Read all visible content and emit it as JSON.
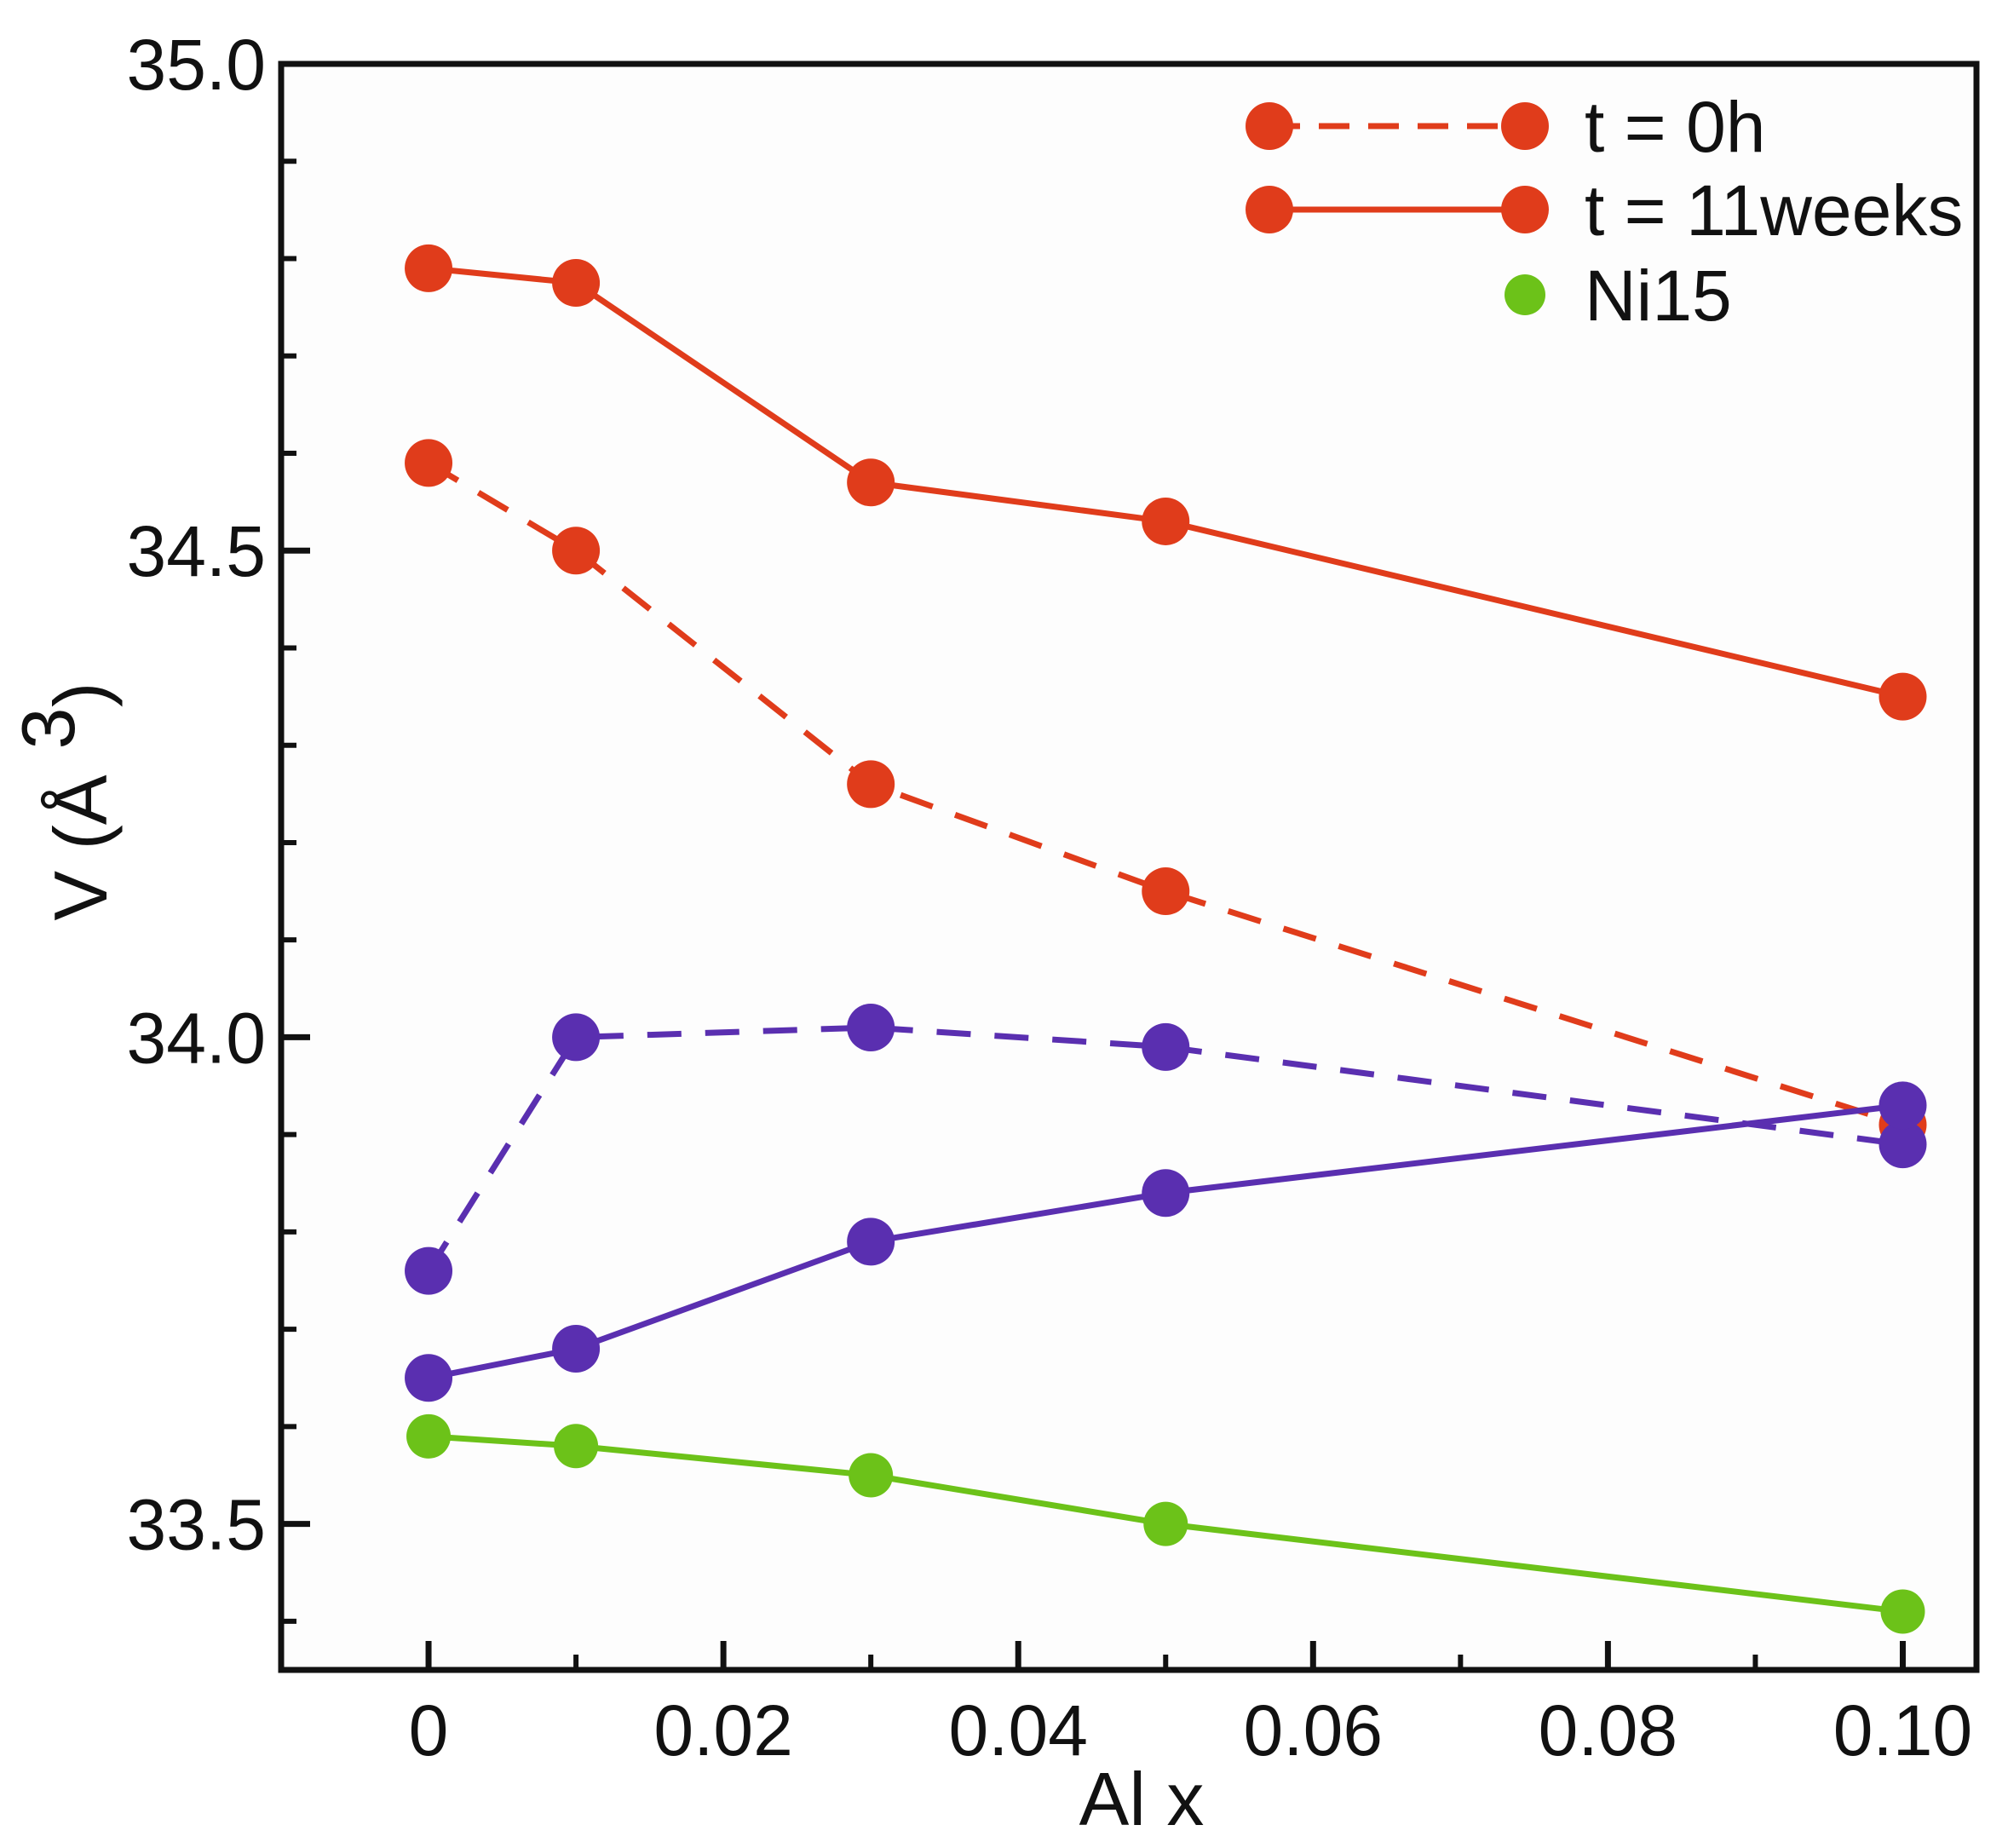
{
  "chart_data": {
    "type": "line",
    "title": "",
    "xlabel": "Al x",
    "ylabel": "V (Å",
    "ylabel_superscript": "3",
    "ylabel_close": ")",
    "xlim": [
      -0.01,
      0.105
    ],
    "ylim": [
      33.35,
      35.0
    ],
    "x_ticks": [
      0,
      0.02,
      0.04,
      0.06,
      0.08,
      0.1
    ],
    "x_tick_labels": [
      "0",
      "0.02",
      "0.04",
      "0.06",
      "0.08",
      "0.10"
    ],
    "x_minor_ticks": [
      0.01,
      0.03,
      0.05,
      0.07,
      0.09
    ],
    "y_ticks": [
      33.5,
      34.0,
      34.5,
      35.0
    ],
    "y_tick_labels": [
      "33.5",
      "34.0",
      "34.5",
      "35.0"
    ],
    "y_minor_ticks": [
      33.4,
      33.6,
      33.7,
      33.8,
      33.9,
      34.1,
      34.2,
      34.3,
      34.4,
      34.6,
      34.7,
      34.8,
      34.9
    ],
    "grid": false,
    "legend_position": "top-right",
    "legend": [
      {
        "label": "t = 0h",
        "style": "dashed",
        "color": "#e03c1b"
      },
      {
        "label": "t = 11weeks",
        "style": "solid",
        "color": "#e03c1b"
      },
      {
        "label": "Ni15",
        "style": "marker",
        "color": "#6cc219"
      }
    ],
    "series": [
      {
        "name": "red t = 11weeks",
        "color": "#e03c1b",
        "style": "solid",
        "x": [
          0,
          0.01,
          0.03,
          0.05,
          0.1
        ],
        "values": [
          34.79,
          34.775,
          34.57,
          34.53,
          34.35
        ]
      },
      {
        "name": "red t = 0h",
        "color": "#e03c1b",
        "style": "dashed",
        "x": [
          0,
          0.01,
          0.03,
          0.05,
          0.1
        ],
        "values": [
          34.59,
          34.5,
          34.26,
          34.15,
          33.91
        ]
      },
      {
        "name": "purple t = 0h",
        "color": "#5a2fb0",
        "style": "dashed",
        "x": [
          0,
          0.01,
          0.03,
          0.05,
          0.1
        ],
        "values": [
          33.76,
          34.0,
          34.01,
          33.99,
          33.89
        ]
      },
      {
        "name": "purple t = 11weeks",
        "color": "#5a2fb0",
        "style": "solid",
        "x": [
          0,
          0.01,
          0.03,
          0.05,
          0.1
        ],
        "values": [
          33.65,
          33.68,
          33.79,
          33.84,
          33.93
        ]
      },
      {
        "name": "Ni15",
        "color": "#6cc219",
        "style": "solid",
        "x": [
          0,
          0.01,
          0.03,
          0.05,
          0.1
        ],
        "values": [
          33.59,
          33.58,
          33.55,
          33.5,
          33.41
        ]
      }
    ]
  }
}
